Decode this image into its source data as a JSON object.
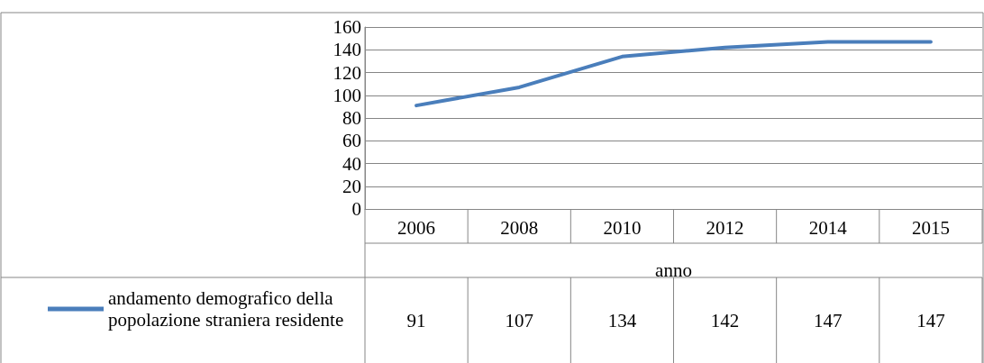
{
  "chart_data": {
    "type": "line",
    "xlabel": "anno",
    "categories": [
      "2006",
      "2008",
      "2010",
      "2012",
      "2014",
      "2015"
    ],
    "series": [
      {
        "name": "andamento demografico della popolazione straniera residente",
        "color": "#4a7ebb",
        "values": [
          91,
          107,
          134,
          142,
          147,
          147
        ]
      }
    ],
    "ylim": [
      0,
      160
    ],
    "yticks": [
      0,
      20,
      40,
      60,
      80,
      100,
      120,
      140,
      160
    ],
    "grid": "y",
    "legend": "bottom left",
    "marker": "none",
    "line_style": "solid",
    "data_labels": true
  }
}
